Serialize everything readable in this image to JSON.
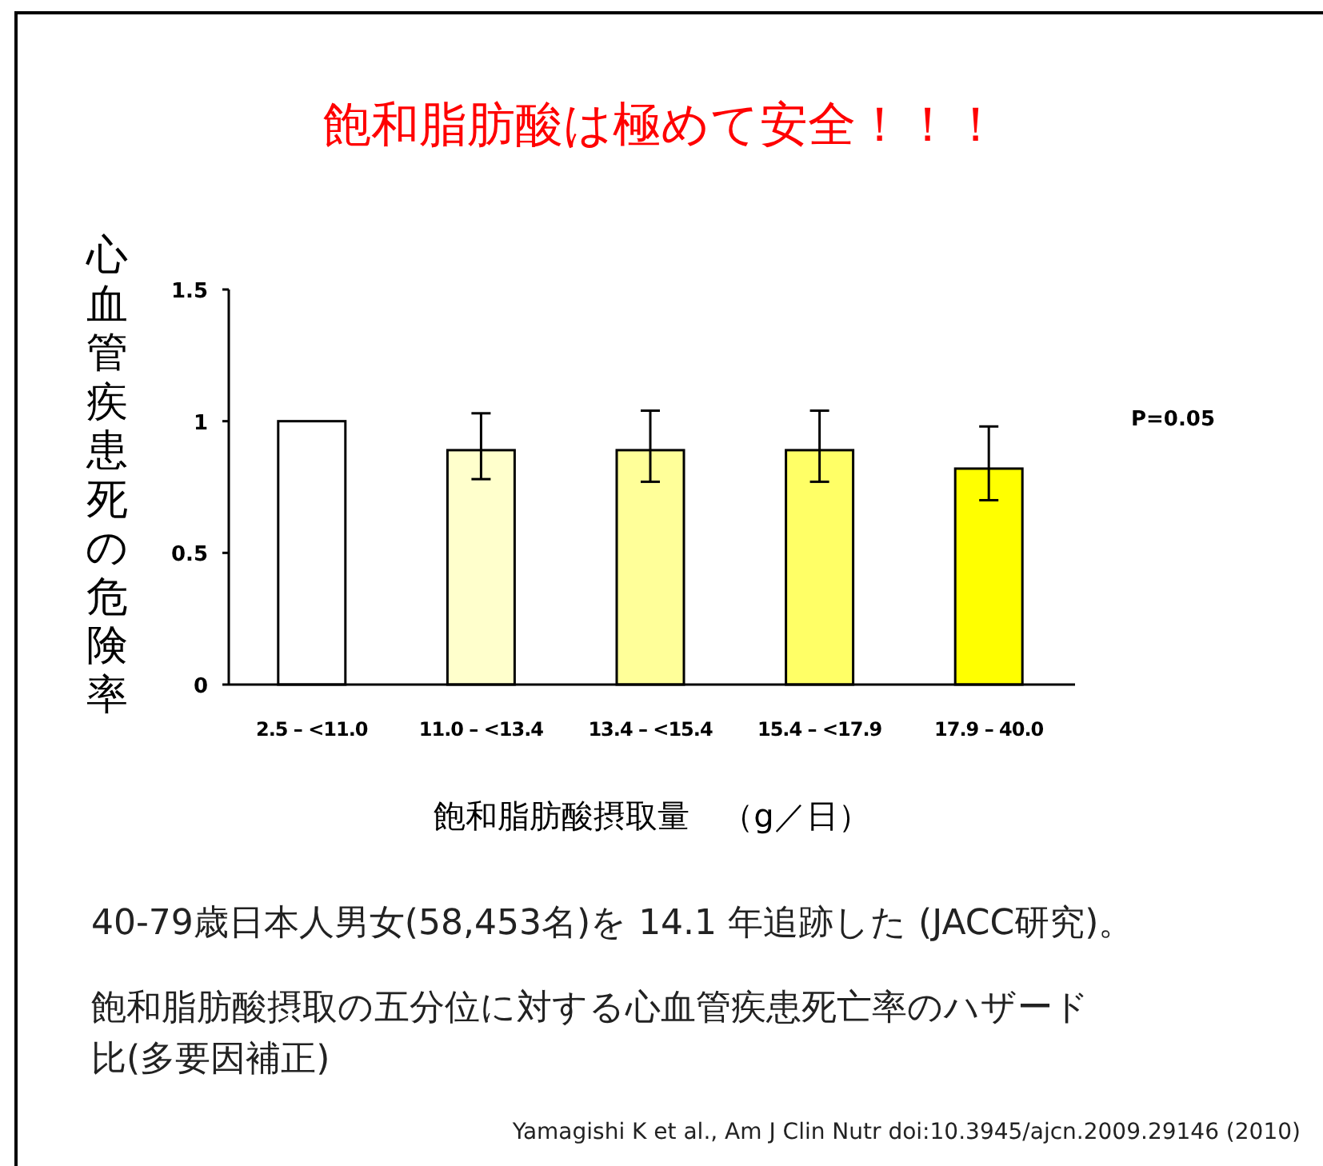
{
  "chart_data": {
    "type": "bar",
    "title": "飽和脂肪酸は極めて安全！！！",
    "xlabel": "飽和脂肪酸摂取量　（g／日）",
    "ylabel": "心血管疾患死の危険率",
    "categories": [
      "2.5 – <11.0",
      "11.0 – <13.4",
      "13.4 – <15.4",
      "15.4 – <17.9",
      "17.9 – 40.0"
    ],
    "values": [
      1,
      0.89,
      0.89,
      0.89,
      0.82
    ],
    "colors": [
      "#ffffff",
      "#ffffcc",
      "#ffff99",
      "#ffff66",
      "#ffff00"
    ],
    "errors": [
      null,
      [
        0.78,
        1.03
      ],
      [
        0.77,
        1.04
      ],
      [
        0.77,
        1.04
      ],
      [
        0.7,
        0.98
      ]
    ],
    "ylim": [
      0,
      1.5
    ],
    "yticks": [
      0,
      0.5,
      1,
      1.5
    ],
    "grid": false,
    "annotations": [
      "P=0.05",
      "40-79歳日本人男女(58,453名)を 14.1 年追跡した (JACC研究)。",
      "飽和脂肪酸摂取の五分位に対する心血管疾患死亡率のハザード比(多要因補正)",
      "Yamagishi K et al., Am J Clin Nutr doi:10.3945/ajcn.2009.29146 (2010)"
    ]
  }
}
